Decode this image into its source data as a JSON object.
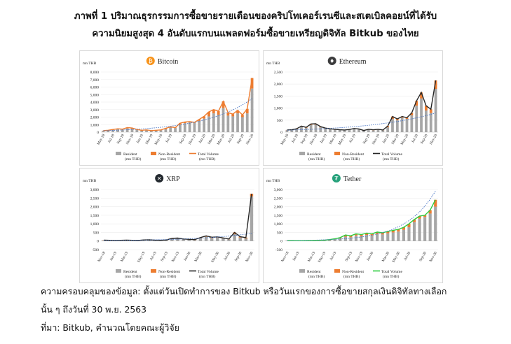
{
  "title_lines": [
    "ภาพที่ 1 ปริมาณธุรกรรมการซื้อขายรายเดือนของคริปโทเคอร์เรนซีและสเตเบิลคอยน์ที่ได้รับ",
    "ความนิยมสูงสุด 4 อันดับแรกบนแพลตฟอร์มซื้อขายเหรียญดิจิทัล Bitkub ของไทย"
  ],
  "notes": [
    "ความครอบคลุมของข้อมูล: ตั้งแต่วันเปิดทำการของ Bitkub หรือวันแรกของการซื้อขายสกุลเงินดิจิทัลทางเลือก",
    "นั้น ๆ ถึงวันที่ 30 พ.ย. 2563",
    "ที่มา: Bitkub, คำนวณโดยคณะผู้วิจัย"
  ],
  "colors": {
    "resident": "#a6a6a6",
    "non_resident": "#ed7d31",
    "trend": "#4472c4"
  },
  "chart_data": [
    {
      "type": "bar+line",
      "title": "Bitcoin",
      "icon": "bitcoin-icon",
      "icon_color": "#f7931a",
      "icon_glyph": "₿",
      "unit_label": "mn THB",
      "ylim": [
        0,
        8000
      ],
      "yticks": [
        0,
        1000,
        2000,
        3000,
        4000,
        5000,
        6000,
        7000,
        8000
      ],
      "ytick_labels": [
        "0",
        "1,000",
        "2,000",
        "3,000",
        "4,000",
        "5,000",
        "6,000",
        "7,000",
        "8,000"
      ],
      "xtick_labels": [
        "May-18",
        "Jul-18",
        "Sep-18",
        "Nov-18",
        "Jan-19",
        "Mar-19",
        "May-19",
        "Jul-19",
        "Sep-19",
        "Nov-19",
        "Jan-20",
        "Mar-20",
        "May-20",
        "Jul-20",
        "Sep-20",
        "Nov-20"
      ],
      "total_color": "#ed7d31",
      "legend": [
        {
          "label": "Resident",
          "sub": "(mn THB)",
          "kind": "bar",
          "color": "#a6a6a6"
        },
        {
          "label": "Non-Resident",
          "sub": "(mn THB)",
          "kind": "bar",
          "color": "#ed7d31"
        },
        {
          "label": "Total Volume",
          "sub": "(mn THB)",
          "kind": "line",
          "color": "#ed7d31"
        }
      ],
      "resident": [
        150,
        200,
        300,
        400,
        350,
        500,
        450,
        300,
        200,
        250,
        150,
        200,
        250,
        400,
        600,
        550,
        1000,
        1200,
        1300,
        1250,
        1500,
        1800,
        2100,
        2500,
        2300,
        3200,
        2200,
        2100,
        2500,
        2000,
        2500,
        5800
      ],
      "total": [
        200,
        250,
        350,
        450,
        400,
        600,
        550,
        350,
        250,
        300,
        200,
        250,
        300,
        500,
        700,
        600,
        1200,
        1350,
        1400,
        1300,
        1700,
        2100,
        2700,
        3000,
        2800,
        4100,
        2600,
        2400,
        2900,
        2300,
        3100,
        7200
      ]
    },
    {
      "type": "bar+line",
      "title": "Ethereum",
      "icon": "ethereum-icon",
      "icon_color": "#3c3c3d",
      "icon_glyph": "♦",
      "unit_label": "mn THB",
      "ylim": [
        0,
        2500
      ],
      "yticks": [
        0,
        500,
        1000,
        1500,
        2000,
        2500
      ],
      "ytick_labels": [
        "0",
        "500",
        "1,000",
        "1,500",
        "2,000",
        "2,500"
      ],
      "xtick_labels": [
        "May-18",
        "Jul-18",
        "Sep-18",
        "Nov-18",
        "Jan-19",
        "Mar-19",
        "May-19",
        "Jul-19",
        "Sep-19",
        "Nov-19",
        "Jan-20",
        "Mar-20",
        "May-20",
        "Jul-20",
        "Sep-20",
        "Nov-20"
      ],
      "total_color": "#262626",
      "legend": [
        {
          "label": "Resident",
          "sub": "(mn THB)",
          "kind": "bar",
          "color": "#a6a6a6"
        },
        {
          "label": "Non-Resident",
          "sub": "(mn THB)",
          "kind": "bar",
          "color": "#ed7d31"
        },
        {
          "label": "Total Volume",
          "sub": "(mn THB)",
          "kind": "line",
          "color": "#262626"
        }
      ],
      "resident": [
        80,
        90,
        120,
        220,
        180,
        300,
        310,
        200,
        150,
        120,
        100,
        90,
        80,
        100,
        130,
        120,
        60,
        100,
        80,
        100,
        80,
        200,
        550,
        500,
        600,
        550,
        700,
        1100,
        1400,
        900,
        800,
        1800
      ],
      "total": [
        90,
        100,
        140,
        250,
        200,
        340,
        350,
        230,
        170,
        140,
        120,
        100,
        90,
        110,
        150,
        130,
        70,
        120,
        100,
        120,
        90,
        250,
        650,
        550,
        650,
        600,
        800,
        1300,
        1650,
        1100,
        950,
        2150
      ]
    },
    {
      "type": "bar+line",
      "title": "XRP",
      "icon": "xrp-icon",
      "icon_color": "#23292f",
      "icon_glyph": "✕",
      "unit_label": "mn THB",
      "ylim": [
        -500,
        3000
      ],
      "yticks": [
        -500,
        0,
        500,
        1000,
        1500,
        2000,
        2500,
        3000
      ],
      "ytick_labels": [
        "-500",
        "0",
        "500",
        "1,000",
        "1,500",
        "2,000",
        "2,500",
        "3,000"
      ],
      "xtick_labels": [
        "Nov-18",
        "Jan-19",
        "Mar-19",
        "May-19",
        "Jul-19",
        "Sep-19",
        "Nov-19",
        "Jan-20",
        "Mar-20",
        "May-20",
        "Jul-20",
        "Sep-20",
        "Nov-20"
      ],
      "total_color": "#262626",
      "legend": [
        {
          "label": "Resident",
          "sub": "(mn THB)",
          "kind": "bar",
          "color": "#a6a6a6"
        },
        {
          "label": "Non-Resident",
          "sub": "(mn THB)",
          "kind": "bar",
          "color": "#ed7d31"
        },
        {
          "label": "Total Volume",
          "sub": "(mn THB)",
          "kind": "line",
          "color": "#262626"
        }
      ],
      "resident": [
        40,
        30,
        20,
        30,
        40,
        30,
        20,
        50,
        60,
        40,
        30,
        50,
        120,
        140,
        100,
        80,
        60,
        160,
        250,
        180,
        200,
        150,
        100,
        400,
        200,
        150,
        2600
      ],
      "total": [
        50,
        40,
        30,
        40,
        50,
        40,
        30,
        60,
        70,
        50,
        40,
        60,
        150,
        170,
        120,
        100,
        80,
        200,
        300,
        220,
        240,
        180,
        120,
        500,
        250,
        200,
        2750
      ]
    },
    {
      "type": "bar+line",
      "title": "Tether",
      "icon": "tether-icon",
      "icon_color": "#26a17b",
      "icon_glyph": "₮",
      "unit_label": "mn THB",
      "ylim": [
        -500,
        3000
      ],
      "yticks": [
        -500,
        0,
        500,
        1000,
        1500,
        2000,
        2500,
        3000
      ],
      "ytick_labels": [
        "-500",
        "0",
        "500",
        "1,000",
        "1,500",
        "2,000",
        "2,500",
        "3,000"
      ],
      "xtick_labels": [
        "Nov-18",
        "Jan-19",
        "Mar-19",
        "May-19",
        "Jul-19",
        "Sep-19",
        "Nov-19",
        "Jan-20",
        "Mar-20",
        "May-20",
        "Jul-20",
        "Sep-20",
        "Nov-20"
      ],
      "total_color": "#2ecc40",
      "legend": [
        {
          "label": "Resident",
          "sub": "(mn THB)",
          "kind": "bar",
          "color": "#a6a6a6"
        },
        {
          "label": "Non-Resident",
          "sub": "(mn THB)",
          "kind": "bar",
          "color": "#ed7d31"
        },
        {
          "label": "Total Volume",
          "sub": "(mn THB)",
          "kind": "line",
          "color": "#2ecc40"
        }
      ],
      "resident": [
        20,
        20,
        10,
        10,
        20,
        20,
        30,
        40,
        60,
        100,
        150,
        250,
        220,
        320,
        280,
        350,
        330,
        400,
        380,
        450,
        500,
        550,
        650,
        800,
        1100,
        1300,
        1400,
        1600,
        2000
      ],
      "total": [
        25,
        25,
        15,
        15,
        25,
        30,
        40,
        50,
        80,
        130,
        200,
        350,
        300,
        420,
        380,
        460,
        420,
        520,
        480,
        560,
        620,
        680,
        800,
        1000,
        1250,
        1450,
        1500,
        1800,
        2400
      ]
    }
  ]
}
